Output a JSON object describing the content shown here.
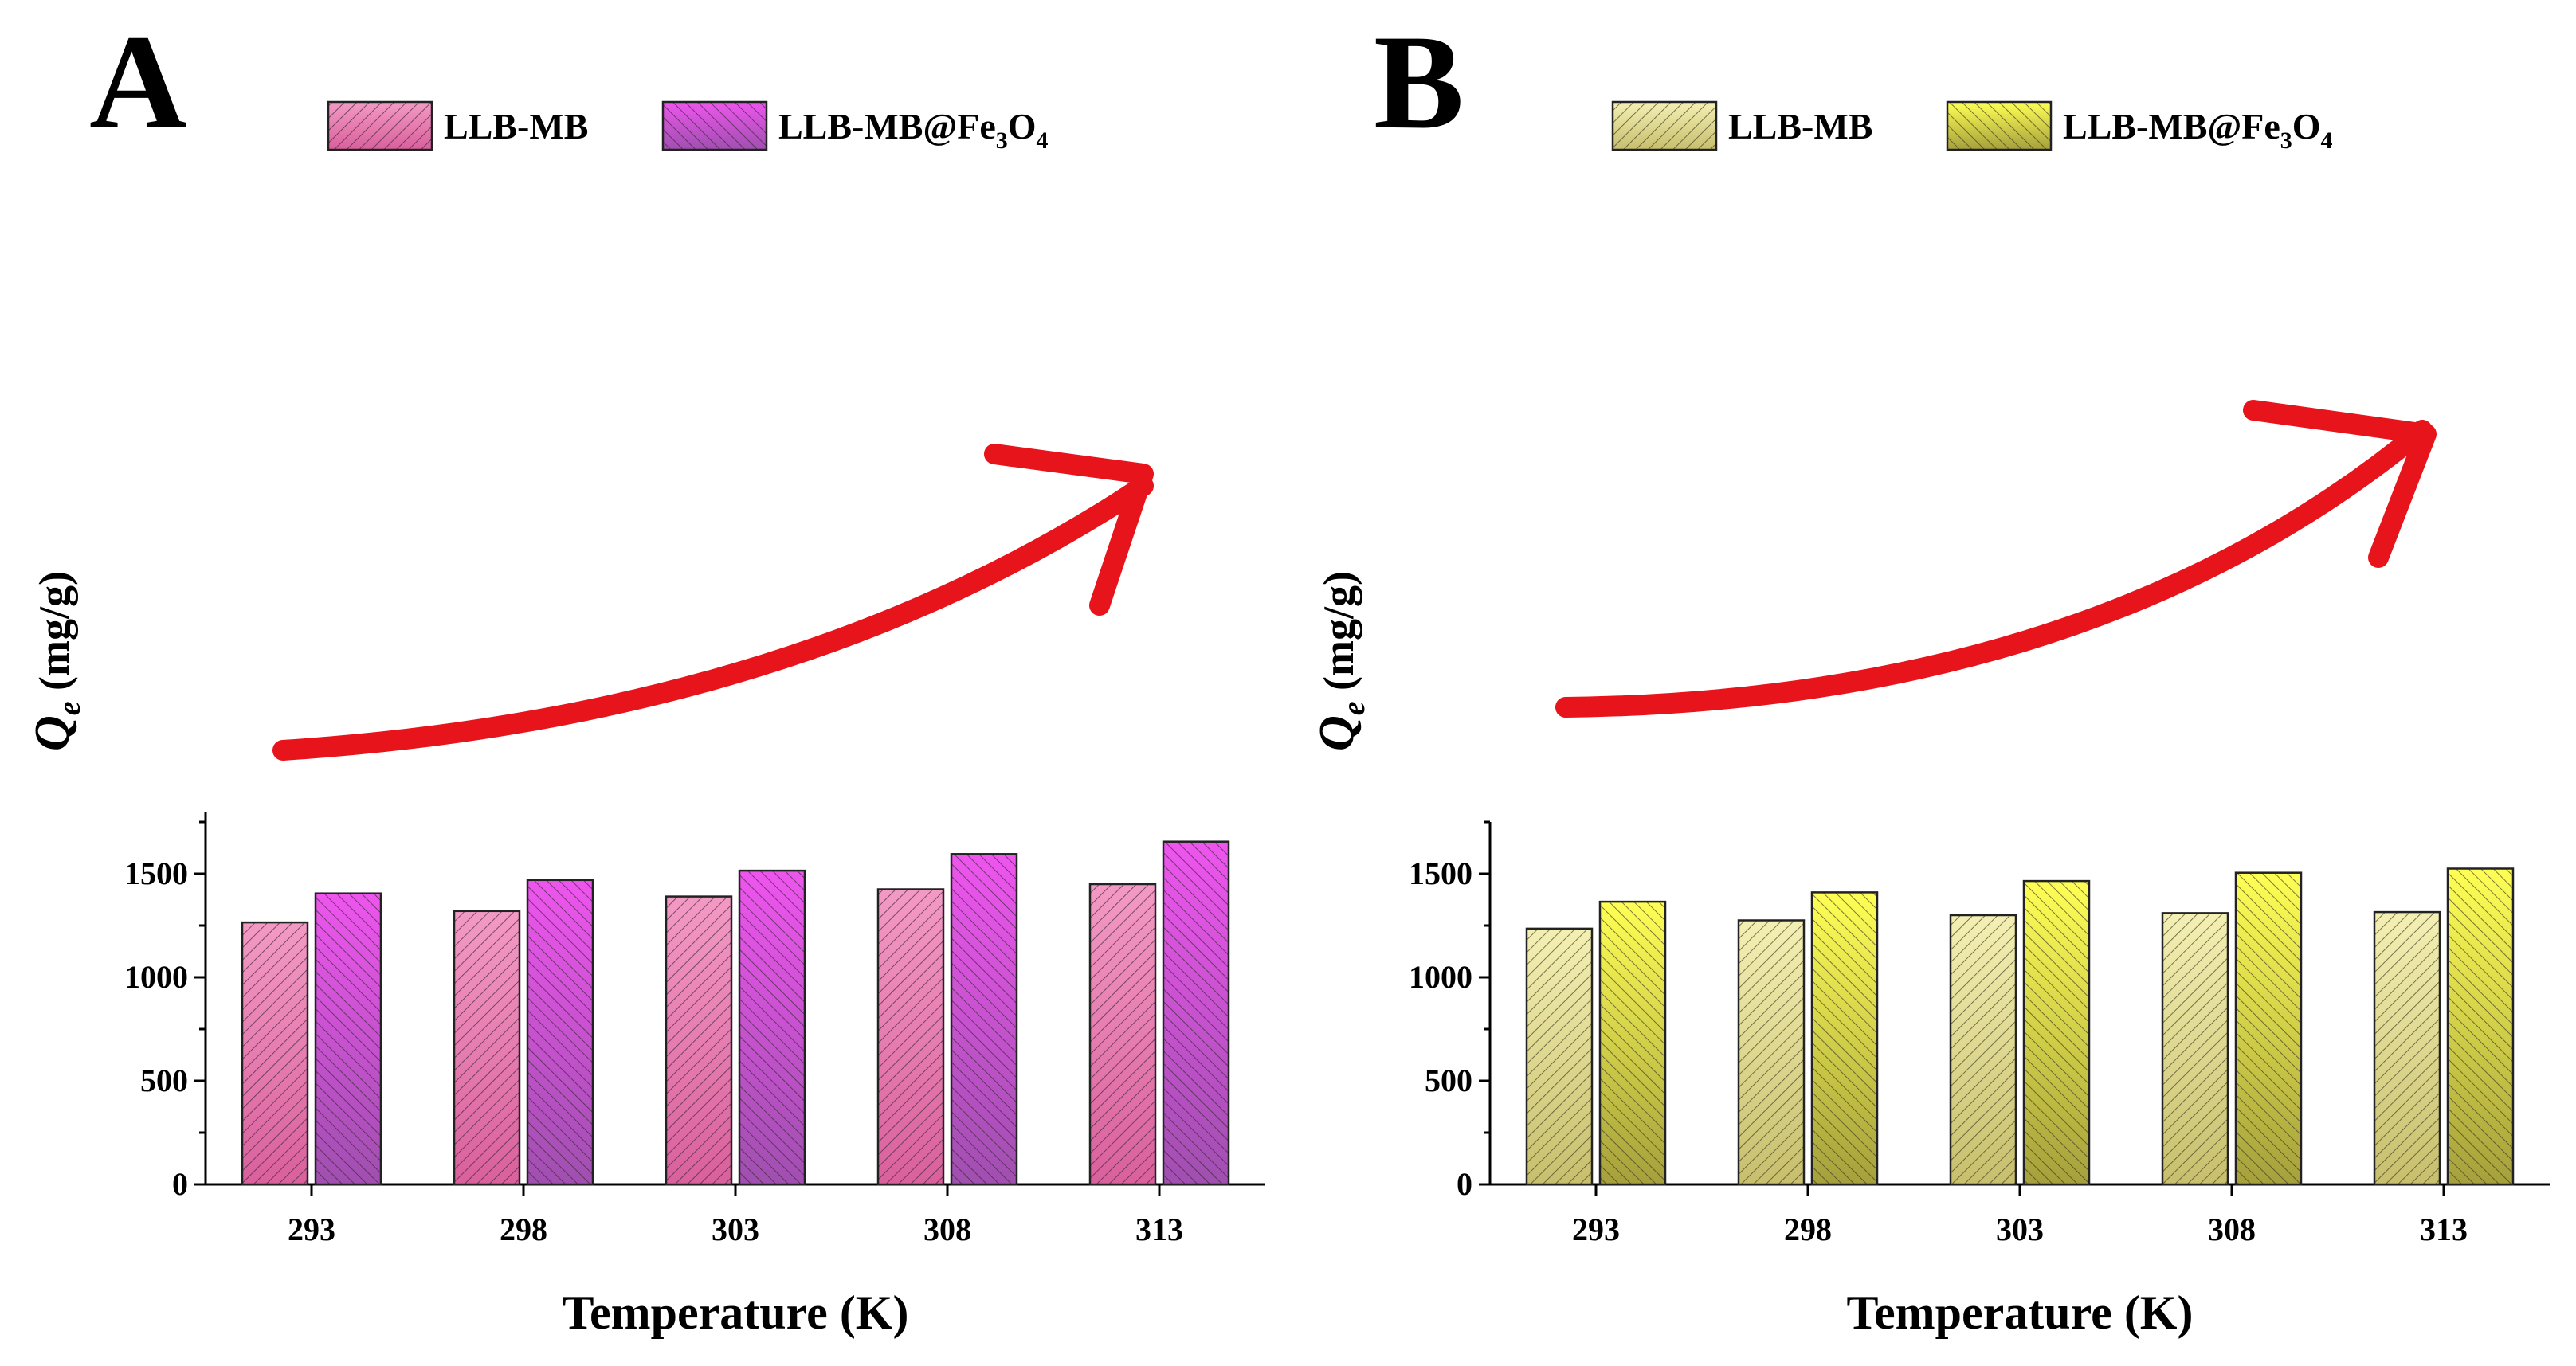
{
  "panels": [
    {
      "letter": "A",
      "legend": {
        "items": [
          {
            "label": "LLB-MB",
            "sub": "",
            "tail": ""
          },
          {
            "label": "LLB-MB@Fe",
            "sub": "3",
            "tail": "O",
            "sub2": "4"
          }
        ]
      },
      "colors": {
        "top1": "#f39ac4",
        "bot1": "#d9609c",
        "top2": "#ee55ee",
        "bot2": "#a04fb0",
        "hatch": "#3a2436"
      },
      "ylabel": {
        "main": "Q",
        "sub": "e",
        "unit": " (mg/g)"
      },
      "xlabel": "Temperature (K)"
    },
    {
      "letter": "B",
      "legend": {
        "items": [
          {
            "label": "LLB-MB",
            "sub": "",
            "tail": ""
          },
          {
            "label": "LLB-MB@Fe",
            "sub": "3",
            "tail": "O",
            "sub2": "4"
          }
        ]
      },
      "colors": {
        "top1": "#f4f0b4",
        "bot1": "#c7bf6c",
        "top2": "#ffff55",
        "bot2": "#a5a03c",
        "hatch": "#3a3820"
      },
      "ylabel": {
        "main": "Q",
        "sub": "e",
        "unit": " (mg/g)"
      },
      "xlabel": "Temperature (K)"
    }
  ],
  "chart_data": [
    {
      "type": "bar",
      "title": "A",
      "categories": [
        "293",
        "298",
        "303",
        "308",
        "313"
      ],
      "series": [
        {
          "name": "LLB-MB",
          "values": [
            1265,
            1320,
            1390,
            1425,
            1450
          ]
        },
        {
          "name": "LLB-MB@Fe3O4",
          "values": [
            1405,
            1470,
            1515,
            1595,
            1655
          ]
        }
      ],
      "xlabel": "Temperature (K)",
      "ylabel": "Qe (mg/g)",
      "ylim": [
        0,
        1800
      ],
      "yticks": [
        0,
        500,
        1000,
        1500
      ],
      "legend": "top",
      "annotation": "red curved arrow indicating increasing trend"
    },
    {
      "type": "bar",
      "title": "B",
      "categories": [
        "293",
        "298",
        "303",
        "308",
        "313"
      ],
      "series": [
        {
          "name": "LLB-MB",
          "values": [
            1235,
            1275,
            1300,
            1310,
            1315
          ]
        },
        {
          "name": "LLB-MB@Fe3O4",
          "values": [
            1365,
            1410,
            1465,
            1505,
            1525
          ]
        }
      ],
      "xlabel": "Temperature (K)",
      "ylabel": "Qe (mg/g)",
      "ylim": [
        0,
        1750
      ],
      "yticks": [
        0,
        500,
        1000,
        1500
      ],
      "legend": "top",
      "annotation": "red curved arrow indicating increasing trend"
    }
  ]
}
